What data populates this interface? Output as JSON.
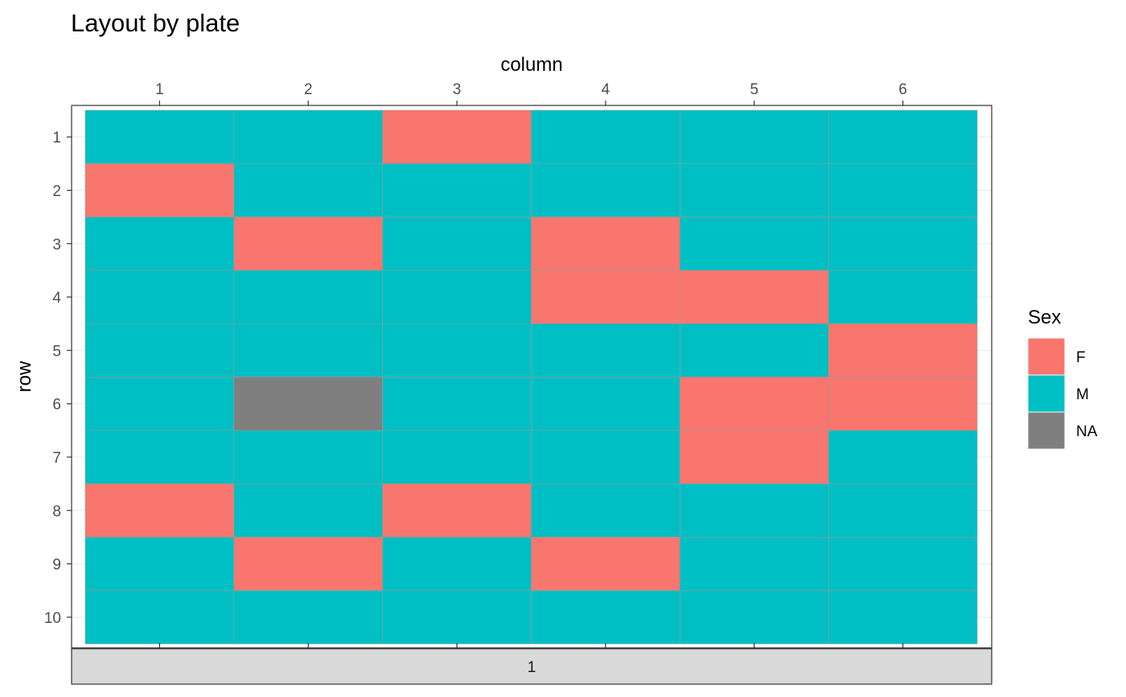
{
  "chart_data": {
    "type": "heatmap",
    "title": "Layout by plate",
    "xlabel": "column",
    "ylabel": "row",
    "x": [
      1,
      2,
      3,
      4,
      5,
      6
    ],
    "y": [
      1,
      2,
      3,
      4,
      5,
      6,
      7,
      8,
      9,
      10
    ],
    "x_tick_labels": [
      "1",
      "2",
      "3",
      "4",
      "5",
      "6"
    ],
    "y_tick_labels": [
      "1",
      "2",
      "3",
      "4",
      "5",
      "6",
      "7",
      "8",
      "9",
      "10"
    ],
    "x_axis_position": "top",
    "y_axis_direction": "reversed",
    "facet": {
      "variable": "plate",
      "strip_label": "1",
      "strip_position": "bottom"
    },
    "legend": {
      "title": "Sex",
      "position": "right",
      "entries": [
        {
          "label": "F",
          "color": "#F8766D"
        },
        {
          "label": "M",
          "color": "#00BFC4"
        },
        {
          "label": "NA",
          "color": "#7F7F7F"
        }
      ]
    },
    "cells": [
      [
        "M",
        "M",
        "F",
        "M",
        "M",
        "M"
      ],
      [
        "F",
        "M",
        "M",
        "M",
        "M",
        "M"
      ],
      [
        "M",
        "F",
        "M",
        "F",
        "M",
        "M"
      ],
      [
        "M",
        "M",
        "M",
        "F",
        "F",
        "M"
      ],
      [
        "M",
        "M",
        "M",
        "M",
        "M",
        "F"
      ],
      [
        "M",
        "NA",
        "M",
        "M",
        "F",
        "F"
      ],
      [
        "M",
        "M",
        "M",
        "M",
        "F",
        "M"
      ],
      [
        "F",
        "M",
        "F",
        "M",
        "M",
        "M"
      ],
      [
        "M",
        "F",
        "M",
        "F",
        "M",
        "M"
      ],
      [
        "M",
        "M",
        "M",
        "M",
        "M",
        "M"
      ]
    ],
    "grid": true,
    "theme": "bw"
  }
}
